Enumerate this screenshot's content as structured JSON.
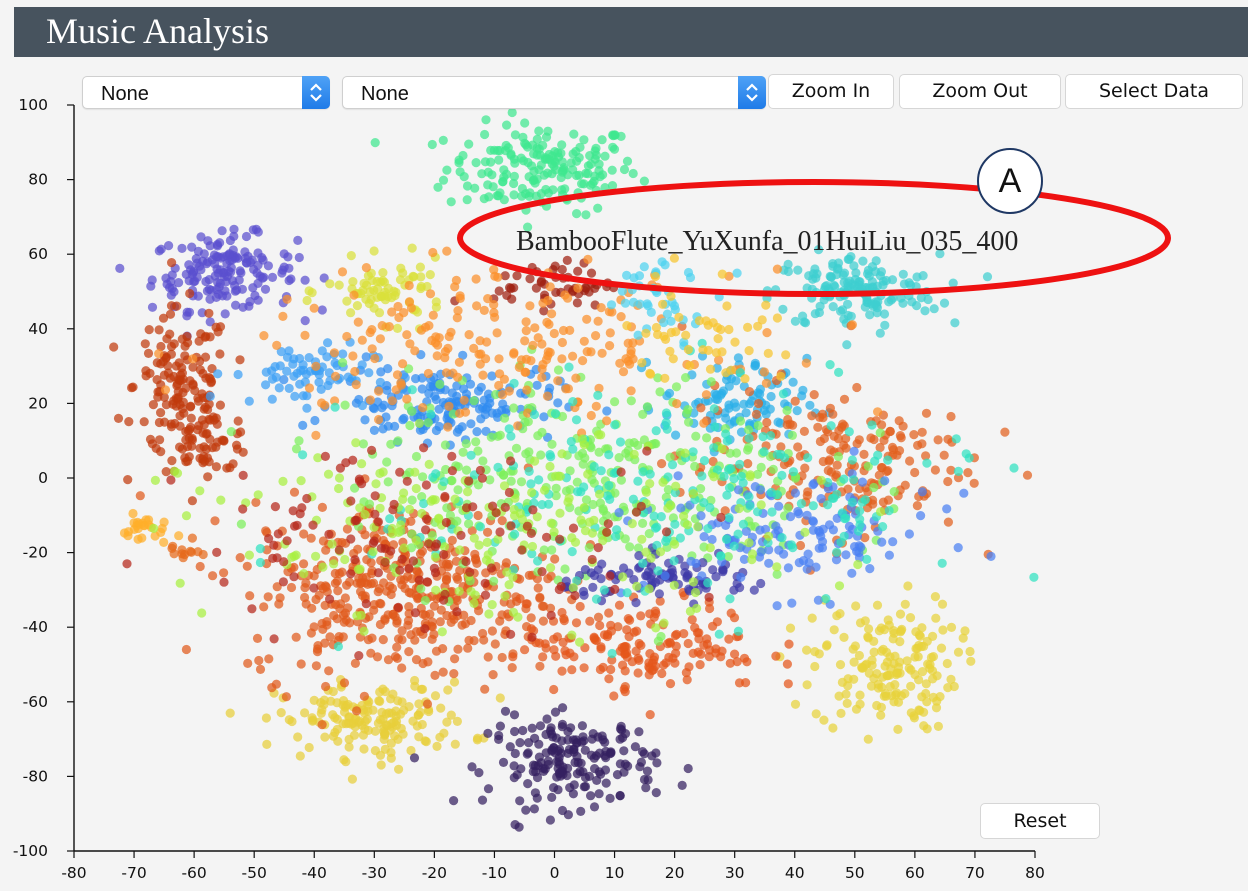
{
  "app": {
    "title": "Music Analysis"
  },
  "controls": {
    "select1": {
      "value": "None"
    },
    "select2": {
      "value": "None"
    },
    "zoom_in_label": "Zoom In",
    "zoom_out_label": "Zoom Out",
    "select_data_label": "Select Data",
    "reset_label": "Reset"
  },
  "hover_label": "BambooFlute_YuXunfa_01HuiLiu_035_400",
  "annotation": {
    "letter": "A",
    "ring_color": "#ee1111",
    "circle_border": "#1f3864"
  },
  "colors": {
    "title_bar": "#47535e",
    "select_arrow": "#2f8bf0",
    "background": "#f4f4f4"
  },
  "chart_data": {
    "type": "scatter",
    "title": "",
    "xlabel": "",
    "ylabel": "",
    "xlim": [
      -80,
      80
    ],
    "ylim": [
      -100,
      100
    ],
    "x_ticks": [
      -80,
      -70,
      -60,
      -50,
      -40,
      -30,
      -20,
      -10,
      0,
      10,
      20,
      30,
      40,
      50,
      60,
      70,
      80
    ],
    "y_ticks": [
      100,
      80,
      60,
      40,
      20,
      0,
      -20,
      -40,
      -60,
      -80,
      -100
    ],
    "grid": false,
    "legend": "none",
    "clusters": [
      {
        "color": "#3ee88f",
        "cx": -2,
        "cy": 83,
        "sx": 8,
        "sy": 6,
        "n": 180
      },
      {
        "color": "#5a4fcf",
        "cx": -55,
        "cy": 55,
        "sx": 6,
        "sy": 5,
        "n": 160
      },
      {
        "color": "#c03a0c",
        "cx": -62,
        "cy": 25,
        "sx": 4,
        "sy": 10,
        "n": 130
      },
      {
        "color": "#c03a0c",
        "cx": -58,
        "cy": 10,
        "sx": 4,
        "sy": 4,
        "n": 60
      },
      {
        "color": "#3fcfd0",
        "cx": 50,
        "cy": 50,
        "sx": 7,
        "sy": 5,
        "n": 150
      },
      {
        "color": "#e8d33a",
        "cx": 55,
        "cy": -50,
        "sx": 6,
        "sy": 9,
        "n": 170
      },
      {
        "color": "#e8cf3a",
        "cx": -30,
        "cy": -65,
        "sx": 8,
        "sy": 5,
        "n": 160
      },
      {
        "color": "#34205f",
        "cx": 3,
        "cy": -76,
        "sx": 7,
        "sy": 6,
        "n": 180
      },
      {
        "color": "#ffae2a",
        "cx": -68,
        "cy": -14,
        "sx": 2,
        "sy": 2,
        "n": 25
      },
      {
        "color": "#e66a1a",
        "cx": -62,
        "cy": -20,
        "sx": 1.5,
        "sy": 1.5,
        "n": 12
      },
      {
        "color": "#d9e13a",
        "cx": -28,
        "cy": 50,
        "sx": 5,
        "sy": 4,
        "n": 70
      },
      {
        "color": "#2f8af0",
        "cx": -18,
        "cy": 20,
        "sx": 9,
        "sy": 5,
        "n": 160
      },
      {
        "color": "#3ca0f5",
        "cx": -42,
        "cy": 28,
        "sx": 6,
        "sy": 4,
        "n": 70
      },
      {
        "color": "#2aaee8",
        "cx": 30,
        "cy": 20,
        "sx": 6,
        "sy": 6,
        "n": 100
      },
      {
        "color": "#a02010",
        "cx": 0,
        "cy": 52,
        "sx": 5,
        "sy": 3,
        "n": 50
      },
      {
        "color": "#e05a1c",
        "cx": -25,
        "cy": -30,
        "sx": 13,
        "sy": 12,
        "n": 420
      },
      {
        "color": "#e25f1d",
        "cx": 45,
        "cy": 5,
        "sx": 12,
        "sy": 10,
        "n": 200
      },
      {
        "color": "#e5561b",
        "cx": 15,
        "cy": -45,
        "sx": 10,
        "sy": 6,
        "n": 160
      },
      {
        "color": "#7cf05a",
        "cx": 5,
        "cy": 0,
        "sx": 20,
        "sy": 14,
        "n": 320
      },
      {
        "color": "#3f3aa8",
        "cx": 20,
        "cy": -27,
        "sx": 9,
        "sy": 2.5,
        "n": 90
      },
      {
        "color": "#fb8f2a",
        "cx": -10,
        "cy": 35,
        "sx": 20,
        "sy": 10,
        "n": 220
      },
      {
        "color": "#4a7ff2",
        "cx": 40,
        "cy": -15,
        "sx": 12,
        "sy": 8,
        "n": 130
      },
      {
        "color": "#2fe2c0",
        "cx": 20,
        "cy": -5,
        "sx": 25,
        "sy": 15,
        "n": 220
      },
      {
        "color": "#a8f040",
        "cx": -10,
        "cy": -15,
        "sx": 25,
        "sy": 12,
        "n": 200
      },
      {
        "color": "#b5271a",
        "cx": -20,
        "cy": -15,
        "sx": 20,
        "sy": 12,
        "n": 130
      },
      {
        "color": "#4dd3f0",
        "cx": 18,
        "cy": 48,
        "sx": 5,
        "sy": 5,
        "n": 40
      },
      {
        "color": "#f7c52e",
        "cx": 25,
        "cy": 40,
        "sx": 6,
        "sy": 8,
        "n": 50
      }
    ]
  }
}
